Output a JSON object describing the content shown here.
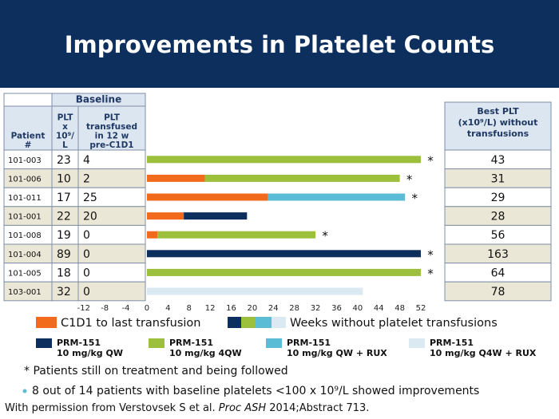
{
  "title": "Improvements in Platelet Counts",
  "baseline_table": {
    "group_header": "Baseline",
    "headers": [
      [
        "Patient",
        "#"
      ],
      [
        "PLT",
        "x",
        "10⁹/",
        "L"
      ],
      [
        "PLT",
        "transfused",
        "in 12 w",
        "pre-C1D1"
      ]
    ],
    "rows": [
      [
        "101-003",
        23,
        4
      ],
      [
        "101-006",
        10,
        2
      ],
      [
        "101-011",
        17,
        25
      ],
      [
        "101-001",
        22,
        20
      ],
      [
        "101-008",
        19,
        0
      ],
      [
        "101-004",
        89,
        0
      ],
      [
        "101-005",
        18,
        0
      ],
      [
        "103-001",
        32,
        0
      ]
    ]
  },
  "best_table": {
    "header": [
      "Best PLT",
      "(x10⁹/L) without",
      "transfusions"
    ],
    "values": [
      43,
      31,
      29,
      28,
      56,
      163,
      64,
      78
    ]
  },
  "chart_data": {
    "type": "swimmer",
    "xlim": [
      -12,
      52
    ],
    "xticks": [
      -12,
      -8,
      -4,
      0,
      4,
      8,
      12,
      16,
      20,
      24,
      28,
      32,
      36,
      40,
      44,
      48,
      52
    ],
    "legend_group": "Weeks without platelet transfusions",
    "marker": "*",
    "ongoing": [
      true,
      true,
      true,
      false,
      true,
      true,
      true,
      false
    ],
    "series": [
      {
        "name": "C1D1 to last transfusion",
        "color": "#f26b1d",
        "values": [
          null,
          11,
          23,
          7,
          2,
          null,
          null,
          null
        ]
      },
      {
        "name": "PRM-151",
        "dose": "10 mg/kg QW",
        "color": "#0d2f5e",
        "values": [
          null,
          null,
          null,
          12,
          null,
          52,
          null,
          null
        ]
      },
      {
        "name": "PRM-151",
        "dose": "10 mg/kg 4QW",
        "color": "#9cc03b",
        "values": [
          52,
          37,
          null,
          null,
          30,
          null,
          52,
          null
        ]
      },
      {
        "name": "PRM-151",
        "dose": "10 mg/kg QW + RUX",
        "color": "#5bbcd6",
        "values": [
          null,
          null,
          26,
          null,
          null,
          null,
          null,
          null
        ]
      },
      {
        "name": "PRM-151",
        "dose": "10 mg/kg Q4W + RUX",
        "color": "#dbe9f3",
        "values": [
          null,
          null,
          null,
          null,
          null,
          null,
          null,
          41
        ]
      }
    ]
  },
  "footnote": "* Patients still on treatment and being followed",
  "bullet": "8 out of 14 patients with baseline platelets <100 x 10⁹/L showed improvements",
  "credit": [
    "With permission from Verstovsek S et al. ",
    "Proc ASH",
    " 2014;Abstract 713."
  ]
}
